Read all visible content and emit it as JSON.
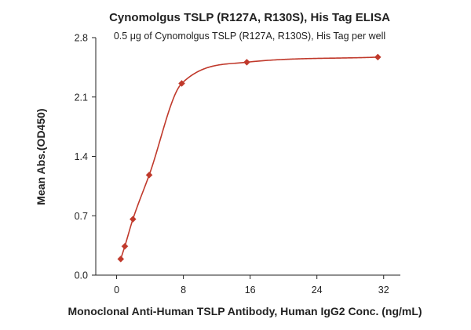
{
  "chart_data": {
    "type": "scatter",
    "title": "Cynomolgus TSLP (R127A, R130S), His Tag ELISA",
    "subtitle": "0.5 μg of Cynomolgus TSLP (R127A, R130S), His Tag per well",
    "xlabel": "Monoclonal Anti-Human TSLP Antibody, Human IgG2 Conc. (ng/mL)",
    "ylabel": "Mean Abs.(OD450)",
    "xlim": [
      -2.5,
      34
    ],
    "ylim": [
      0,
      2.8
    ],
    "x_ticks": [
      0,
      8,
      16,
      24,
      32
    ],
    "x_tick_labels": [
      "0",
      "8",
      "16",
      "24",
      "32"
    ],
    "y_ticks": [
      0,
      0.7,
      1.4,
      2.1,
      2.8
    ],
    "y_tick_labels": [
      "0.0",
      "0.7",
      "1.4",
      "2.1",
      "2.8"
    ],
    "grid": false,
    "marker": "diamond",
    "series": [
      {
        "x": [
          0.49,
          0.98,
          1.95,
          3.9,
          7.8,
          15.6,
          31.3
        ],
        "y": [
          0.19,
          0.34,
          0.66,
          1.18,
          2.26,
          2.51,
          2.57
        ],
        "fit": "4PL curve",
        "color": "#c0392b"
      }
    ]
  }
}
